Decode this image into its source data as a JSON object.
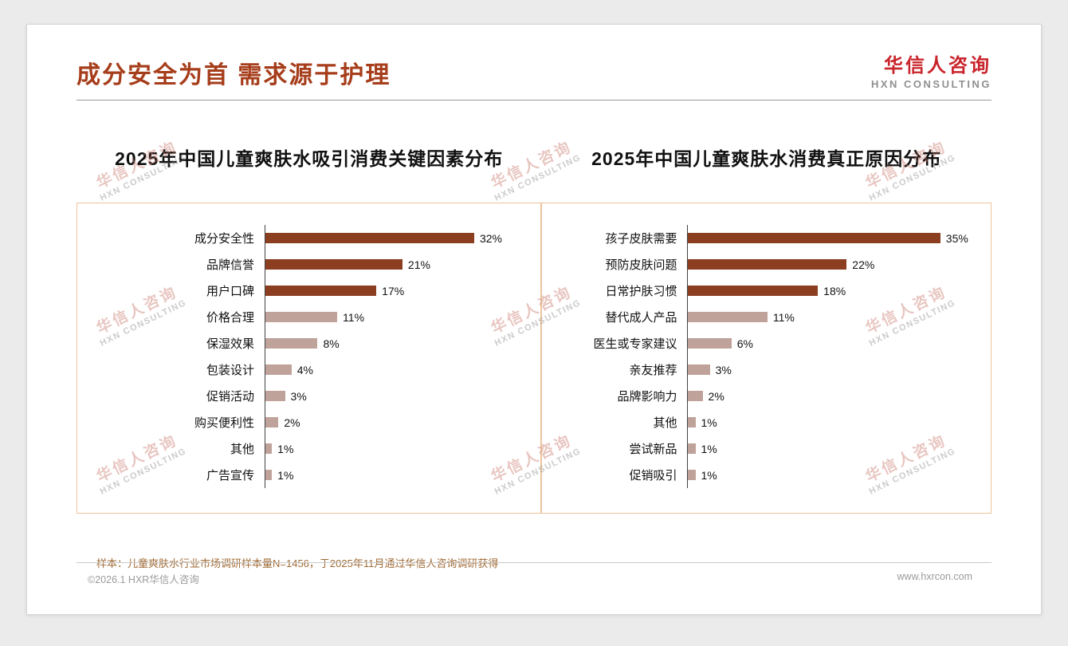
{
  "slide": {
    "title": "成分安全为首 需求源于护理",
    "logo": {
      "name": "华信人咨询",
      "sub": "HXN CONSULTING"
    },
    "watermark": {
      "line1": "华信人咨询",
      "line2": "HXN CONSULTING"
    },
    "footnote": "样本：儿童爽肤水行业市场调研样本量N=1456，于2025年11月通过华信人咨询调研获得",
    "footer_left": "©2026.1 HXR华信人咨询",
    "footer_right": "www.hxrcon.com"
  },
  "chart_data": [
    {
      "type": "bar",
      "orientation": "horizontal",
      "title": "2025年中国儿童爽肤水吸引消费关键因素分布",
      "categories": [
        "成分安全性",
        "品牌信誉",
        "用户口碑",
        "价格合理",
        "保湿效果",
        "包装设计",
        "促销活动",
        "购买便利性",
        "其他",
        "广告宣传"
      ],
      "values": [
        32,
        21,
        17,
        11,
        8,
        4,
        3,
        2,
        1,
        1
      ],
      "value_suffix": "%",
      "xlim": [
        0,
        40
      ],
      "grid": false,
      "legend": false,
      "dark_count": 3,
      "colors": {
        "dark": "#8B3E20",
        "light": "#BFA29A"
      }
    },
    {
      "type": "bar",
      "orientation": "horizontal",
      "title": "2025年中国儿童爽肤水消费真正原因分布",
      "categories": [
        "孩子皮肤需要",
        "预防皮肤问题",
        "日常护肤习惯",
        "替代成人产品",
        "医生或专家建议",
        "亲友推荐",
        "品牌影响力",
        "其他",
        "尝试新品",
        "促销吸引"
      ],
      "values": [
        35,
        22,
        18,
        11,
        6,
        3,
        2,
        1,
        1,
        1
      ],
      "value_suffix": "%",
      "xlim": [
        0,
        40
      ],
      "grid": false,
      "legend": false,
      "dark_count": 3,
      "colors": {
        "dark": "#8B3E20",
        "light": "#BFA29A"
      }
    }
  ]
}
